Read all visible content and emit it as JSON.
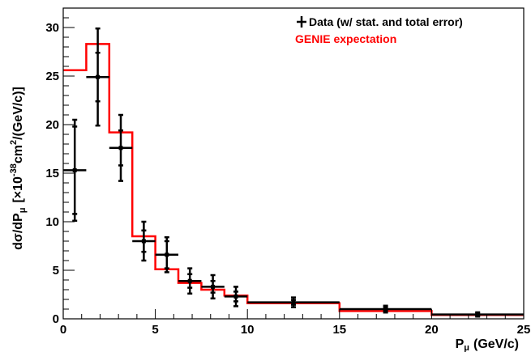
{
  "chart_data": {
    "type": "line",
    "xlabel": "P",
    "xlabel_sub": "μ",
    "xlabel_unit": "(GeV/c)",
    "ylabel_main": "dσ/dP",
    "ylabel_sub": "μ",
    "ylabel_unit_pre": "[×10",
    "ylabel_exp": "-38",
    "ylabel_unit_mid": "cm",
    "ylabel_sq": "2",
    "ylabel_unit_post": "/(GeV/c)]",
    "xlim": [
      0,
      25
    ],
    "ylim": [
      0,
      32
    ],
    "x_ticks": [
      0,
      5,
      10,
      15,
      20,
      25
    ],
    "y_ticks": [
      0,
      5,
      10,
      15,
      20,
      25,
      30
    ],
    "x_tick_labels": [
      "0",
      "5",
      "10",
      "15",
      "20",
      "25"
    ],
    "y_tick_labels": [
      "0",
      "5",
      "10",
      "15",
      "20",
      "25",
      "30"
    ],
    "grid": false,
    "legend_position": "top-right",
    "legend": [
      {
        "label": "Data (w/ stat. and total error)",
        "color": "#000000",
        "marker": "cross"
      },
      {
        "label": "GENIE expectation",
        "color": "#ff0000",
        "marker": "none"
      }
    ],
    "series": [
      {
        "name": "Data (w/ stat. and total error)",
        "kind": "points",
        "color": "#000000",
        "points": [
          {
            "x": 0.625,
            "y": 15.3,
            "xerr": 0.625,
            "stat": 4.5,
            "total": 5.2
          },
          {
            "x": 1.875,
            "y": 24.9,
            "xerr": 0.625,
            "stat": 2.5,
            "total": 5.0
          },
          {
            "x": 3.125,
            "y": 17.6,
            "xerr": 0.625,
            "stat": 1.8,
            "total": 3.4
          },
          {
            "x": 4.375,
            "y": 8.0,
            "xerr": 0.625,
            "stat": 1.1,
            "total": 2.0
          },
          {
            "x": 5.625,
            "y": 6.6,
            "xerr": 0.625,
            "stat": 1.4,
            "total": 1.8
          },
          {
            "x": 6.875,
            "y": 3.9,
            "xerr": 0.625,
            "stat": 0.7,
            "total": 1.3
          },
          {
            "x": 8.125,
            "y": 3.3,
            "xerr": 0.625,
            "stat": 0.6,
            "total": 1.2
          },
          {
            "x": 9.375,
            "y": 2.3,
            "xerr": 0.625,
            "stat": 0.5,
            "total": 1.0
          },
          {
            "x": 12.5,
            "y": 1.7,
            "xerr": 2.5,
            "stat": 0.25,
            "total": 0.5
          },
          {
            "x": 17.5,
            "y": 1.0,
            "xerr": 2.5,
            "stat": 0.2,
            "total": 0.35
          },
          {
            "x": 22.5,
            "y": 0.45,
            "xerr": 2.5,
            "stat": 0.12,
            "total": 0.22
          }
        ]
      },
      {
        "name": "GENIE expectation",
        "kind": "step",
        "color": "#ff0000",
        "bins": [
          {
            "x0": 0,
            "x1": 1.25,
            "y": 25.6
          },
          {
            "x0": 1.25,
            "x1": 2.5,
            "y": 28.3
          },
          {
            "x0": 2.5,
            "x1": 3.75,
            "y": 19.2
          },
          {
            "x0": 3.75,
            "x1": 5.0,
            "y": 8.5
          },
          {
            "x0": 5.0,
            "x1": 6.25,
            "y": 5.1
          },
          {
            "x0": 6.25,
            "x1": 7.5,
            "y": 3.7
          },
          {
            "x0": 7.5,
            "x1": 8.75,
            "y": 3.0
          },
          {
            "x0": 8.75,
            "x1": 10.0,
            "y": 2.4
          },
          {
            "x0": 10.0,
            "x1": 15.0,
            "y": 1.6
          },
          {
            "x0": 15.0,
            "x1": 20.0,
            "y": 0.8
          },
          {
            "x0": 20.0,
            "x1": 25.0,
            "y": 0.4
          }
        ]
      }
    ]
  }
}
